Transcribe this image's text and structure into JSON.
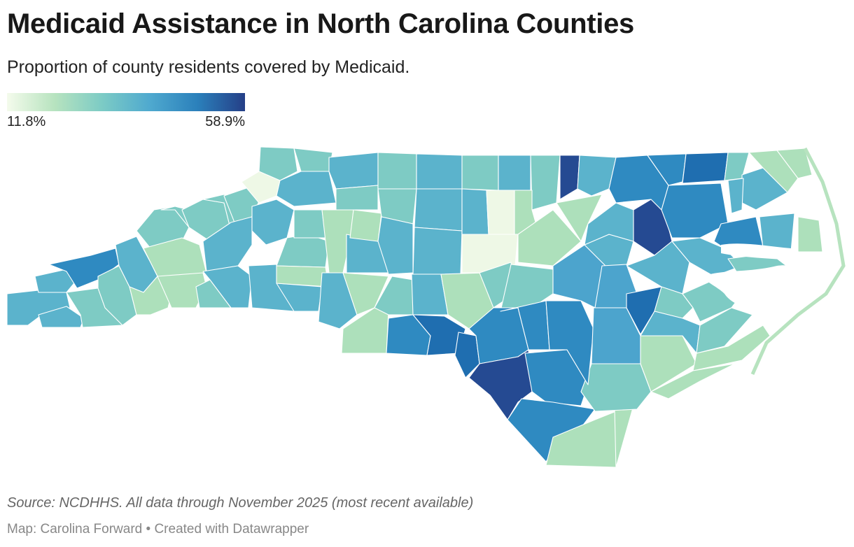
{
  "title": "Medicaid Assistance in North Carolina Counties",
  "subtitle": "Proportion of county residents covered by Medicaid.",
  "legend": {
    "min_label": "11.8%",
    "max_label": "58.9%",
    "min_value": 11.8,
    "max_value": 58.9
  },
  "colors": {
    "c1": "#eef8e6",
    "c2": "#ade0bb",
    "c3": "#7ecbc4",
    "c4": "#5bb3cc",
    "c5": "#4ca4cd",
    "c6": "#2f8ac1",
    "c7": "#1f6eb0",
    "c8": "#254a92"
  },
  "source": "Source: NCDHHS. All data through November 2025 (most recent available)",
  "credit": "Map: Carolina Forward • Created with Datawrapper"
}
